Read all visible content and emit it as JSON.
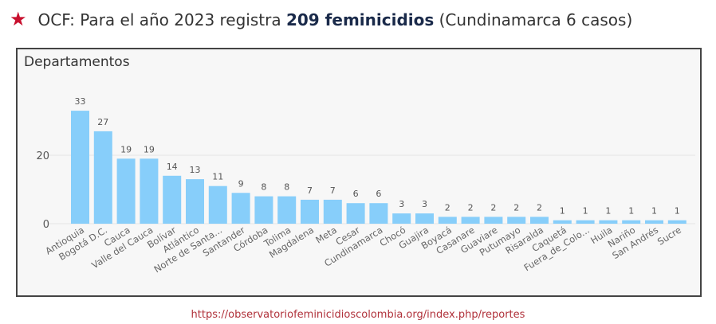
{
  "header": {
    "star_icon": "star",
    "prefix": "OCF: Para el año 2023 registra ",
    "bold": "209 feminicidios",
    "suffix": " (Cundinamarca 6 casos)"
  },
  "source": "https://observatoriofeminicidioscolombia.org/index.php/reportes",
  "chart_data": {
    "type": "bar",
    "title": "Departamentos",
    "xlabel": "",
    "ylabel": "",
    "ylim": [
      0,
      35
    ],
    "yticks": [
      0,
      20
    ],
    "bar_color": "#87cefa",
    "categories": [
      "Antioquia",
      "Bogotá D.C.",
      "Cauca",
      "Valle del Cauca",
      "Bolívar",
      "Atlántico",
      "Norte de Santa...",
      "Santander",
      "Córdoba",
      "Tolima",
      "Magdalena",
      "Meta",
      "Cesar",
      "Cundinamarca",
      "Chocó",
      "Guajira",
      "Boyacá",
      "Casanare",
      "Guaviare",
      "Putumayo",
      "Risaralda",
      "Caquetá",
      "Fuera_de_Colo...",
      "Huila",
      "Nariño",
      "San Andrés",
      "Sucre"
    ],
    "values": [
      33,
      27,
      19,
      19,
      14,
      13,
      11,
      9,
      8,
      8,
      7,
      7,
      6,
      6,
      3,
      3,
      2,
      2,
      2,
      2,
      2,
      1,
      1,
      1,
      1,
      1,
      1
    ]
  }
}
